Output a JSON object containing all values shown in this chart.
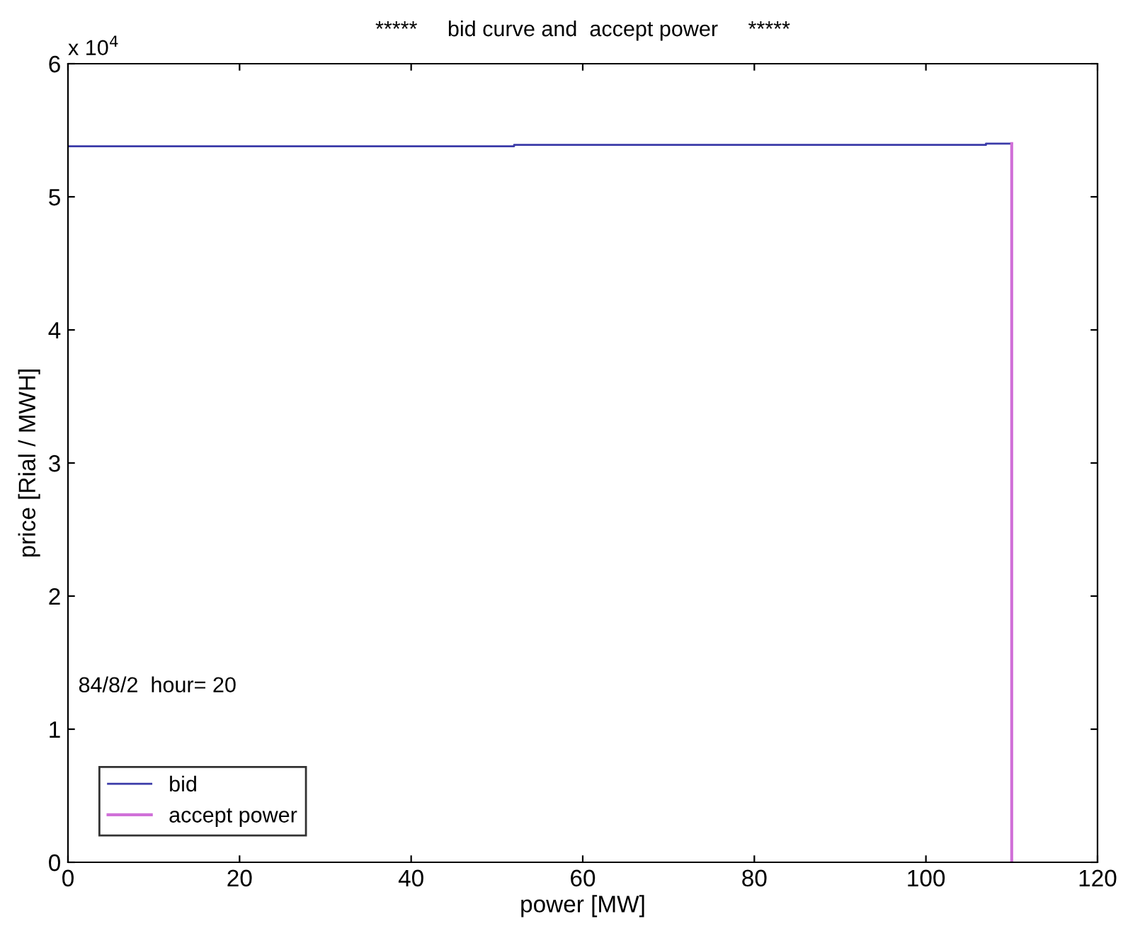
{
  "chart_data": {
    "type": "step",
    "title": "*****     bid curve and  accept power     *****",
    "xlabel": "power [MW]",
    "ylabel": "price [Rial / MWH]",
    "series": [
      {
        "name": "bid",
        "color": "#3a3aa8",
        "x": [
          0,
          52,
          107,
          110
        ],
        "values": [
          5.38,
          5.39,
          5.4,
          5.4
        ]
      },
      {
        "name": "accept power",
        "type": "line",
        "color": "#d070d8",
        "x": [
          110,
          110
        ],
        "values": [
          0,
          5.4
        ]
      }
    ],
    "xlim": [
      0,
      120
    ],
    "xticks": [
      0,
      20,
      40,
      60,
      80,
      100,
      120
    ],
    "ylim": [
      0,
      6
    ],
    "yticks": [
      0,
      1,
      2,
      3,
      4,
      5,
      6
    ],
    "annotations": [
      "x 10$^{4}$",
      "84/8/2  hour= 20"
    ],
    "legend": "bottom left",
    "grid": false
  }
}
